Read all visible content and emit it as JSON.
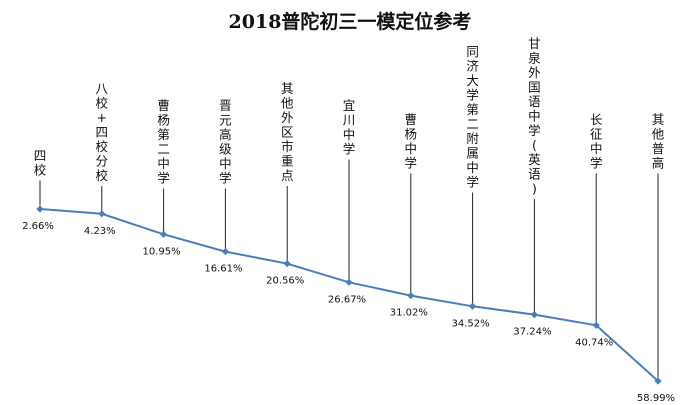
{
  "chart_data": {
    "type": "line",
    "title": "2018普陀初三一模定位参考",
    "categories": [
      "四校",
      "八校+四校分校",
      "曹杨第二中学",
      "晋元高级中学",
      "其他外区市重点",
      "宜川中学",
      "曹杨中学",
      "同济大学第二附属中学",
      "甘泉外国语中学(英语)",
      "长征中学",
      "其他普高"
    ],
    "value_labels": [
      "2.66%",
      "4.23%",
      "10.95%",
      "16.61%",
      "20.56%",
      "26.67%",
      "31.02%",
      "34.52%",
      "37.24%",
      "40.74%",
      "58.99%"
    ],
    "series": [
      {
        "values": [
          2.66,
          4.23,
          10.95,
          16.61,
          20.56,
          26.67,
          31.02,
          34.52,
          37.24,
          40.74,
          58.99
        ]
      }
    ],
    "ylim": [
      0,
      60
    ],
    "y_inverted": true,
    "grid": false,
    "legend": "none",
    "line_color": "#4a7ebb",
    "marker_color": "#4a7ebb",
    "marker": "diamond"
  }
}
